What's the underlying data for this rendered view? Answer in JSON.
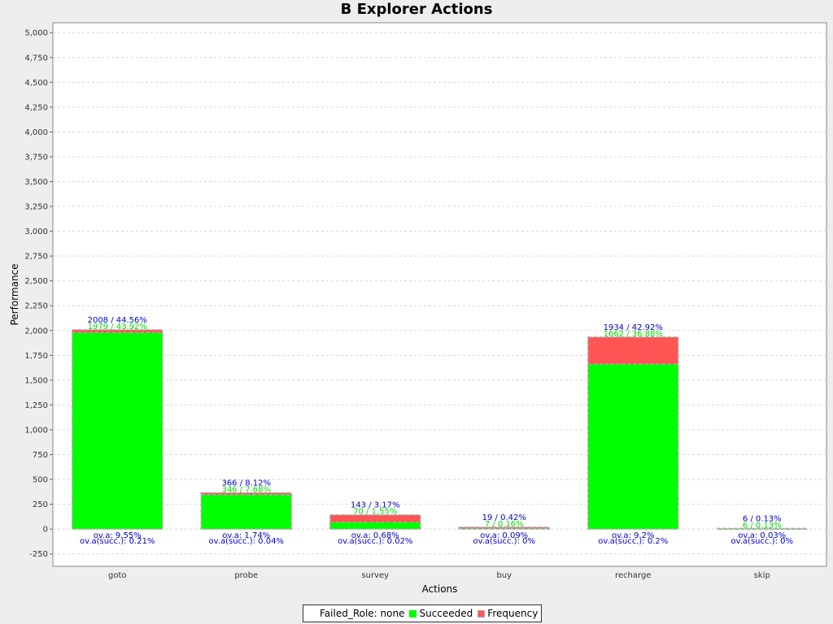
{
  "chart_data": {
    "type": "bar",
    "title": "B Explorer Actions",
    "xlabel": "Actions",
    "ylabel": "Performance",
    "ylim": [
      -375,
      5100
    ],
    "yticks": [
      -250,
      0,
      250,
      500,
      750,
      1000,
      1250,
      1500,
      1750,
      2000,
      2250,
      2500,
      2750,
      3000,
      3250,
      3500,
      3750,
      4000,
      4250,
      4500,
      4750,
      5000
    ],
    "ytick_labels": [
      "-250",
      "0",
      "250",
      "500",
      "750",
      "1,000",
      "1,250",
      "1,500",
      "1,750",
      "2,000",
      "2,250",
      "2,500",
      "2,750",
      "3,000",
      "3,250",
      "3,500",
      "3,750",
      "4,000",
      "4,250",
      "4,500",
      "4,750",
      "5,000"
    ],
    "grid": true,
    "legend_position": "bottom",
    "categories": [
      "goto",
      "probe",
      "survey",
      "buy",
      "recharge",
      "skip"
    ],
    "series": [
      {
        "name": "Failed_Role: none",
        "values": [
          0,
          0,
          0,
          0,
          0,
          0
        ],
        "color": "#ffffff"
      },
      {
        "name": "Succeeded",
        "values": [
          1979,
          346,
          70,
          7,
          1662,
          6
        ],
        "color": "#00ff00"
      },
      {
        "name": "Frequency",
        "values": [
          2008,
          366,
          143,
          19,
          1934,
          6
        ],
        "color": "#ff5555"
      }
    ],
    "labels": {
      "frequency": [
        "2008 / 44.56%",
        "366 / 8.12%",
        "143 / 3.17%",
        "19 / 0.42%",
        "1934 / 42.92%",
        "6 / 0.13%"
      ],
      "succeeded": [
        "1979 / 43.92%",
        "346 / 7.68%",
        "70 / 1.55%",
        "7 / 0.16%",
        "1662 / 36.88%",
        "6 / 0.13%"
      ],
      "overall": [
        "ov.a: 9.55%",
        "ov.a: 1.74%",
        "ov.a: 0.68%",
        "ov.a: 0.09%",
        "ov.a: 9.2%",
        "ov.a: 0.03%"
      ],
      "overall_succ": [
        "ov.a(succ.): 0.21%",
        "ov.a(succ.): 0.04%",
        "ov.a(succ.): 0.02%",
        "ov.a(succ.): 0%",
        "ov.a(succ.): 0.2%",
        "ov.a(succ.): 0%"
      ]
    },
    "colors": {
      "succeeded": "#00ff00",
      "frequency": "#ff5555",
      "label_blue": "#0000cc",
      "label_green": "#00dd00",
      "grid": "#d8d8d8",
      "plot_bg": "#ffffff"
    }
  },
  "legend": {
    "failed_label": "Failed_Role: none",
    "succeeded_label": "Succeeded",
    "frequency_label": "Frequency"
  }
}
